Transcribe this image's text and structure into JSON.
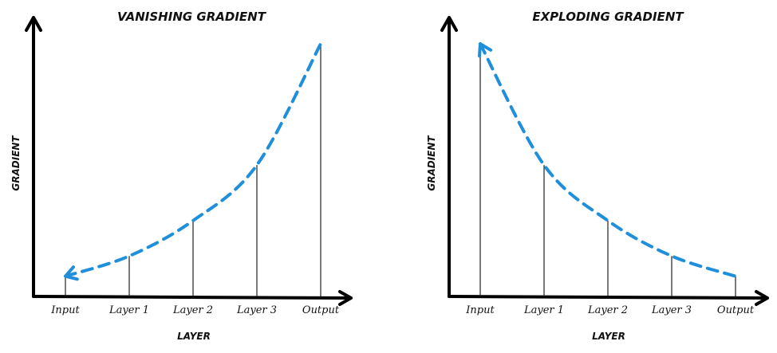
{
  "colors": {
    "curve": "#1f8fdb",
    "axis": "#000000"
  },
  "chart_data": [
    {
      "type": "line",
      "title": "VANISHING GRADIENT",
      "xlabel": "LAYER",
      "ylabel": "GRADIENT",
      "categories": [
        "Input",
        "Layer 1",
        "Layer 2",
        "Layer 3",
        "Output"
      ],
      "values": [
        0.08,
        0.16,
        0.3,
        0.52,
        1.0
      ],
      "ylim": [
        0,
        1.1
      ],
      "arrow_at": "start"
    },
    {
      "type": "line",
      "title": "EXPLODING GRADIENT",
      "xlabel": "LAYER",
      "ylabel": "GRADIENT",
      "categories": [
        "Input",
        "Layer 1",
        "Layer 2",
        "Layer 3",
        "Output"
      ],
      "values": [
        1.0,
        0.52,
        0.3,
        0.16,
        0.08
      ],
      "ylim": [
        0,
        1.1
      ],
      "arrow_at": "start"
    }
  ]
}
